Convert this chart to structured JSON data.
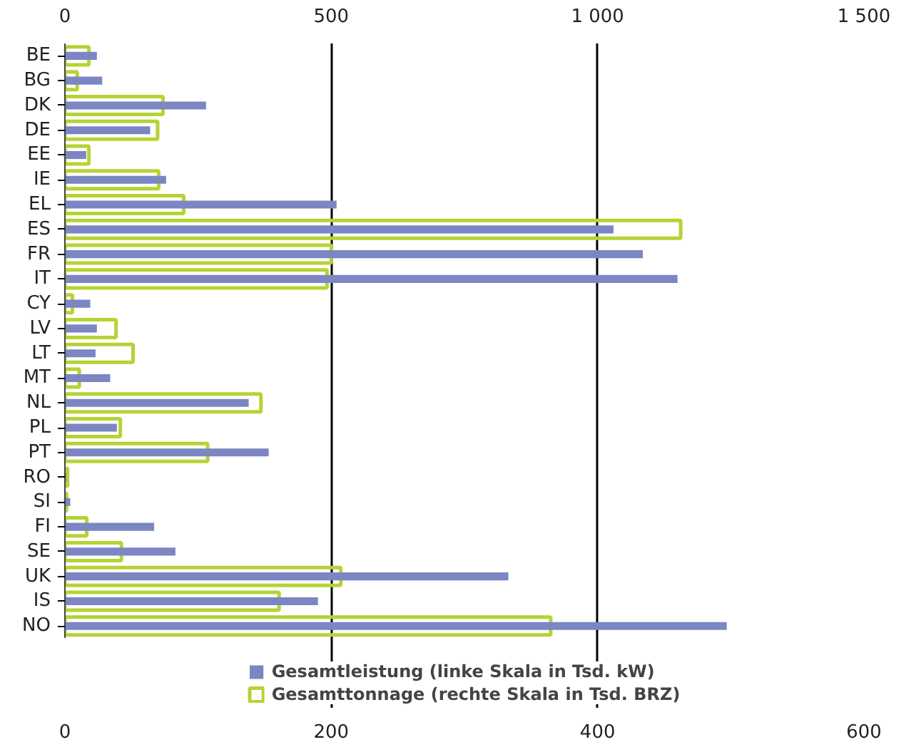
{
  "chart_data": {
    "type": "bar",
    "orientation": "horizontal",
    "categories": [
      "BE",
      "BG",
      "DK",
      "DE",
      "EE",
      "IE",
      "EL",
      "ES",
      "FR",
      "IT",
      "CY",
      "LV",
      "LT",
      "MT",
      "NL",
      "PL",
      "PT",
      "RO",
      "SI",
      "FI",
      "SE",
      "UK",
      "IS",
      "NO"
    ],
    "series": [
      {
        "name": "Gesamtleistung (linke Skala in Tsd. kW)",
        "color": "#7b86c2",
        "values": [
          24,
          28,
          106,
          64,
          16,
          76,
          204,
          412,
          434,
          460,
          19,
          24,
          23,
          34,
          138,
          39,
          153,
          1,
          4,
          67,
          83,
          333,
          190,
          497
        ]
      },
      {
        "name": "Gesamttonnage (rechte Skala in Tsd. BRZ)",
        "color": "#b5d334",
        "axis": "x2",
        "values": [
          45,
          23,
          184,
          174,
          45,
          176,
          223,
          1156,
          500,
          492,
          14,
          96,
          128,
          27,
          368,
          104,
          268,
          5,
          3,
          41,
          106,
          518,
          402,
          912
        ]
      }
    ],
    "xlim": [
      0,
      600
    ],
    "xticks": [
      0,
      200,
      400,
      600
    ],
    "x2lim": [
      0,
      1500
    ],
    "x2ticks": [
      0,
      500,
      {
        "value": 1000,
        "label": "1 000"
      },
      {
        "value": 1500,
        "label": "1 500"
      }
    ],
    "grid": "x",
    "legend": "bottom"
  }
}
